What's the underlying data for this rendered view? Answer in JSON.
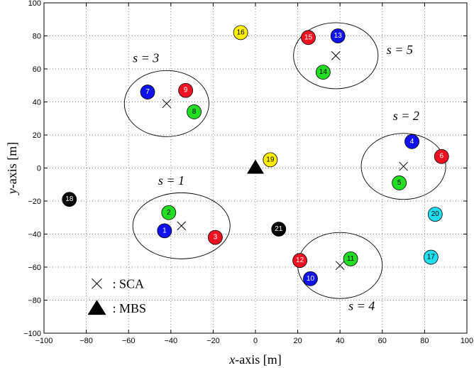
{
  "chart_data": {
    "type": "scatter",
    "xlabel_var": "x",
    "xlabel_rest": "-axis [m]",
    "ylabel_var": "y",
    "ylabel_rest": "-axis [m]",
    "xlim": [
      -100,
      100
    ],
    "ylim": [
      -100,
      100
    ],
    "xticks": [
      -100,
      -80,
      -60,
      -40,
      -20,
      0,
      20,
      40,
      60,
      80,
      100
    ],
    "yticks": [
      -100,
      -80,
      -60,
      -40,
      -20,
      0,
      20,
      40,
      60,
      80,
      100
    ],
    "grid": true,
    "colors": {
      "red": "#ee1122",
      "green": "#22dd22",
      "blue": "#1111ee",
      "yellow": "#ffee00",
      "cyan": "#22ddee",
      "black": "#000000"
    },
    "users": [
      {
        "id": "1",
        "x": -43,
        "y": -38,
        "color": "blue"
      },
      {
        "id": "2",
        "x": -41,
        "y": -27,
        "color": "green"
      },
      {
        "id": "3",
        "x": -19,
        "y": -42,
        "color": "red"
      },
      {
        "id": "4",
        "x": 74,
        "y": 16,
        "color": "blue"
      },
      {
        "id": "5",
        "x": 68,
        "y": -9,
        "color": "green"
      },
      {
        "id": "6",
        "x": 88,
        "y": 7,
        "color": "red"
      },
      {
        "id": "7",
        "x": -51,
        "y": 46,
        "color": "blue"
      },
      {
        "id": "8",
        "x": -29,
        "y": 34,
        "color": "green"
      },
      {
        "id": "9",
        "x": -33,
        "y": 47,
        "color": "red"
      },
      {
        "id": "10",
        "x": 26,
        "y": -67,
        "color": "blue"
      },
      {
        "id": "11",
        "x": 45,
        "y": -55,
        "color": "green"
      },
      {
        "id": "12",
        "x": 21,
        "y": -56,
        "color": "red"
      },
      {
        "id": "13",
        "x": 39,
        "y": 80,
        "color": "blue"
      },
      {
        "id": "14",
        "x": 32,
        "y": 58,
        "color": "green"
      },
      {
        "id": "15",
        "x": 25,
        "y": 79,
        "color": "red"
      },
      {
        "id": "16",
        "x": -7,
        "y": 82,
        "color": "yellow"
      },
      {
        "id": "17",
        "x": 83,
        "y": -54,
        "color": "cyan"
      },
      {
        "id": "18",
        "x": -88,
        "y": -19,
        "color": "black"
      },
      {
        "id": "19",
        "x": 7,
        "y": 5,
        "color": "yellow"
      },
      {
        "id": "20",
        "x": 85,
        "y": -28,
        "color": "cyan"
      },
      {
        "id": "21",
        "x": 11,
        "y": -37,
        "color": "black"
      }
    ],
    "clusters": [
      {
        "label": "s = 1",
        "cx": -35,
        "cy": -35,
        "rx": 23,
        "ry": 20,
        "label_x": -46,
        "label_y": -10
      },
      {
        "label": "s = 2",
        "cx": 70,
        "cy": 1,
        "rx": 20,
        "ry": 20,
        "label_x": 65,
        "label_y": 29
      },
      {
        "label": "s = 3",
        "cx": -42,
        "cy": 39,
        "rx": 20,
        "ry": 20,
        "label_x": -58,
        "label_y": 64
      },
      {
        "label": "s = 4",
        "cx": 40,
        "cy": -59,
        "rx": 20,
        "ry": 20,
        "label_x": 44,
        "label_y": -86
      },
      {
        "label": "s = 5",
        "cx": 38,
        "cy": 68,
        "rx": 20,
        "ry": 20,
        "label_x": 62,
        "label_y": 69
      }
    ],
    "mbs": {
      "x": 0,
      "y": 0
    },
    "legend": [
      {
        "marker": "cross",
        "label": ": SCA"
      },
      {
        "marker": "triangle",
        "label": ": MBS"
      }
    ]
  }
}
